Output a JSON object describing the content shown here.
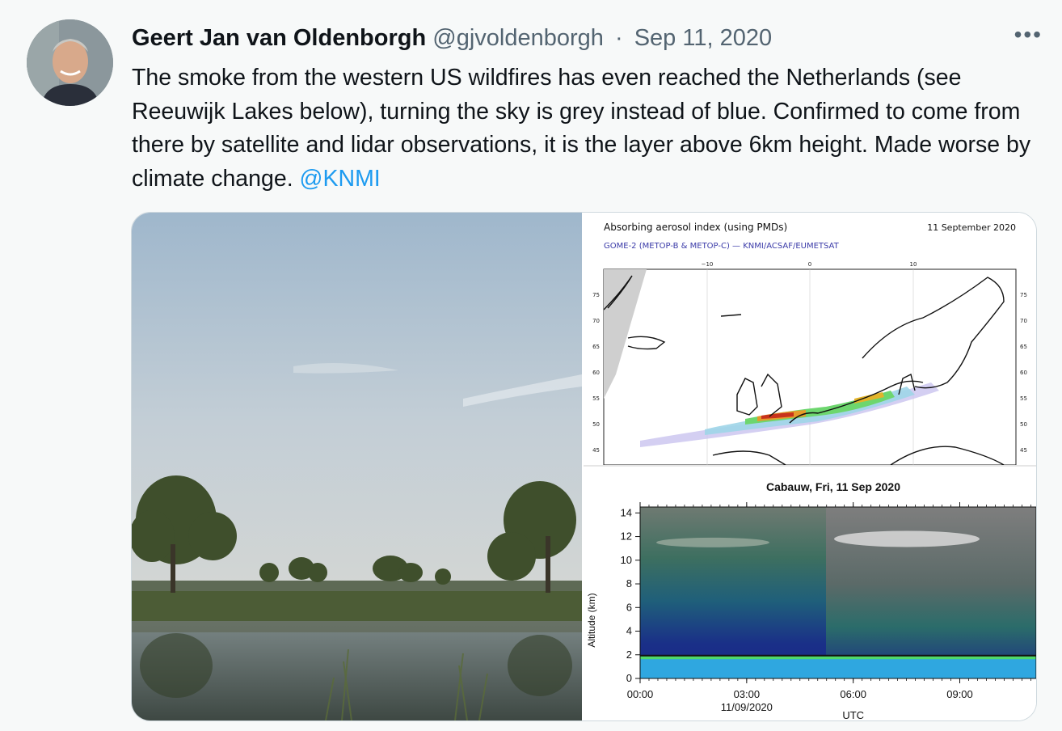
{
  "tweet": {
    "author_name": "Geert Jan van Oldenborgh",
    "handle": "@gjvoldenborgh",
    "separator": "·",
    "date": "Sep 11, 2020",
    "more_label": "•••",
    "text_main": "The smoke from the western US wildfires has even reached the Netherlands (see Reeuwijk Lakes below), turning the sky is grey instead of blue. Confirmed to come from there by satellite and lidar observations, it is the layer above 6km height. Made worse by climate change.",
    "mention": "@KNMI"
  },
  "colors": {
    "text": "#0f1419",
    "secondary": "#536471",
    "link": "#1d9bf0",
    "background": "#f7f9f9"
  },
  "map": {
    "title": "Absorbing aerosol index (using PMDs)",
    "date": "11 September 2020",
    "subtitle": "GOME-2 (METOP-B & METOP-C) — KNMI/ACSAF/EUMETSAT",
    "lon_ticks": [
      "−10",
      "0",
      "10"
    ],
    "lat_ticks": [
      "75",
      "70",
      "65",
      "60",
      "55",
      "50",
      "45"
    ]
  },
  "chart_data": {
    "type": "heatmap",
    "title": "Cabauw, Fri, 11 Sep 2020",
    "xlabel": "UTC",
    "x_date_label": "11/09/2020",
    "ylabel": "Altitude (km)",
    "x_ticks": [
      "00:00",
      "03:00",
      "06:00",
      "09:00"
    ],
    "y_ticks": [
      0,
      2,
      4,
      6,
      8,
      10,
      12,
      14
    ],
    "ylim": [
      0,
      14.5
    ]
  }
}
